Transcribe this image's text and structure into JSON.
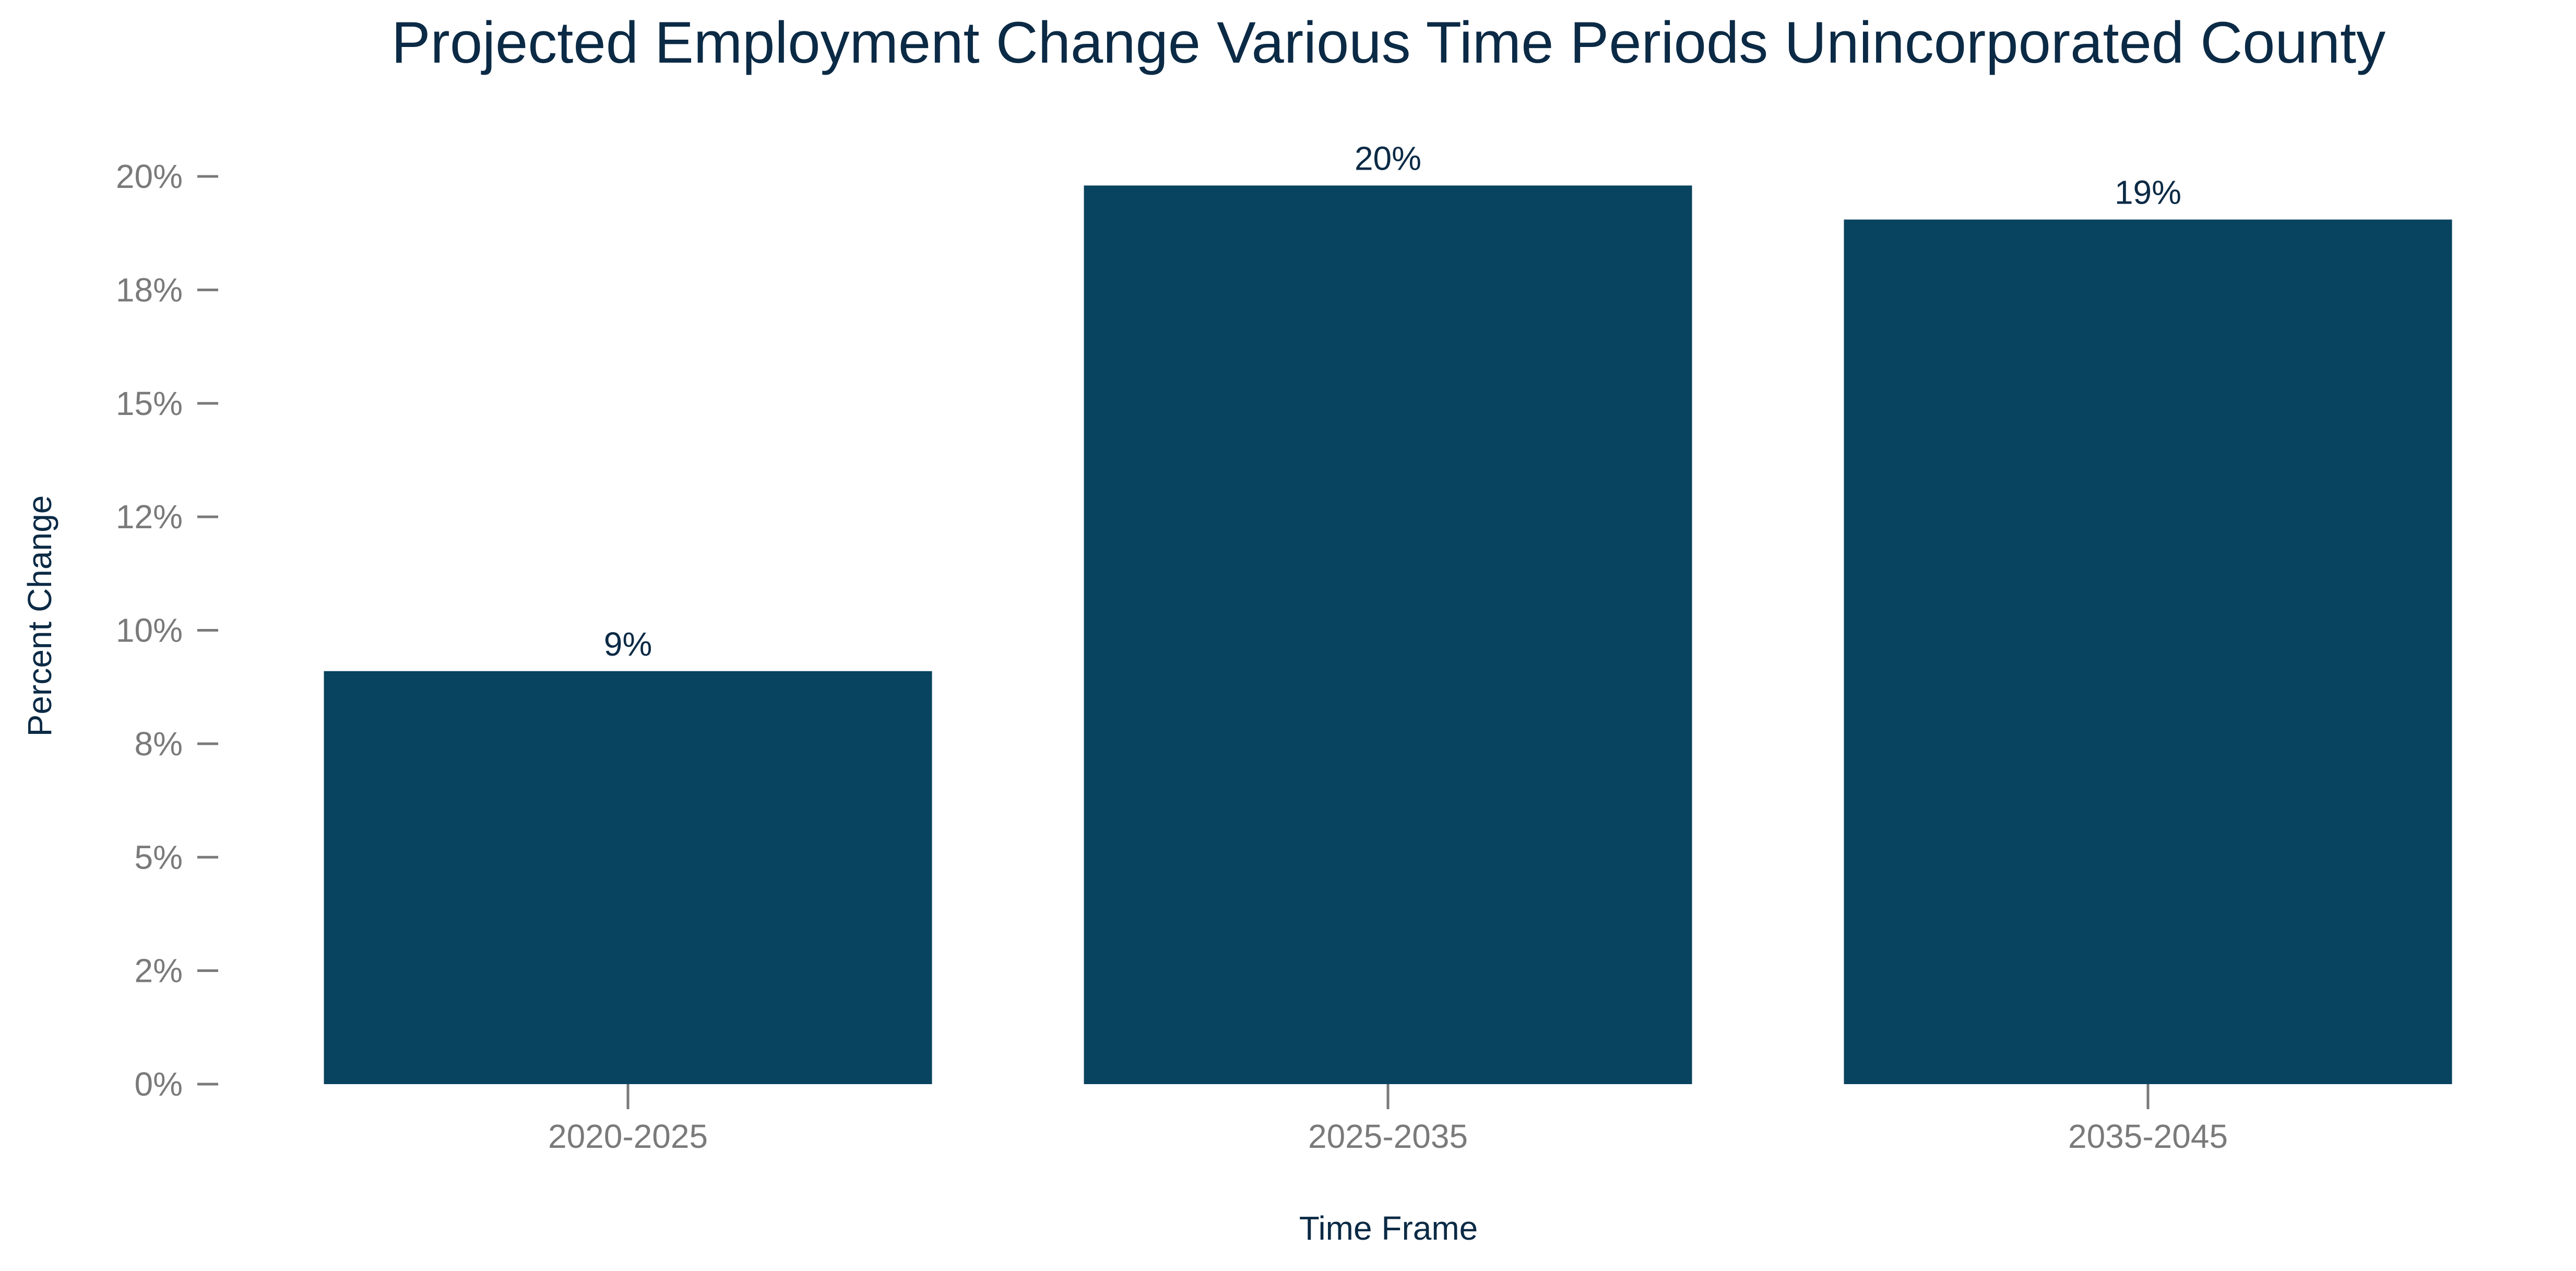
{
  "chart_data": {
    "type": "bar",
    "title": "Projected Employment Change Various Time Periods Unincorporated County",
    "xlabel": "Time Frame",
    "ylabel": "Percent Change",
    "categories": [
      "2020-2025",
      "2025-2035",
      "2035-2045"
    ],
    "values": [
      9.1,
      19.8,
      19.05
    ],
    "data_labels": [
      "9%",
      "20%",
      "19%"
    ],
    "ylim": [
      0,
      20
    ],
    "y_ticks": [
      0,
      2.5,
      5,
      7.5,
      10,
      12.5,
      15,
      17.5,
      20
    ],
    "y_tick_labels": [
      "0%",
      "2%",
      "5%",
      "8%",
      "10%",
      "12%",
      "15%",
      "18%",
      "20%"
    ],
    "grid": false,
    "legend": "none",
    "bar_color": "#08435f"
  }
}
